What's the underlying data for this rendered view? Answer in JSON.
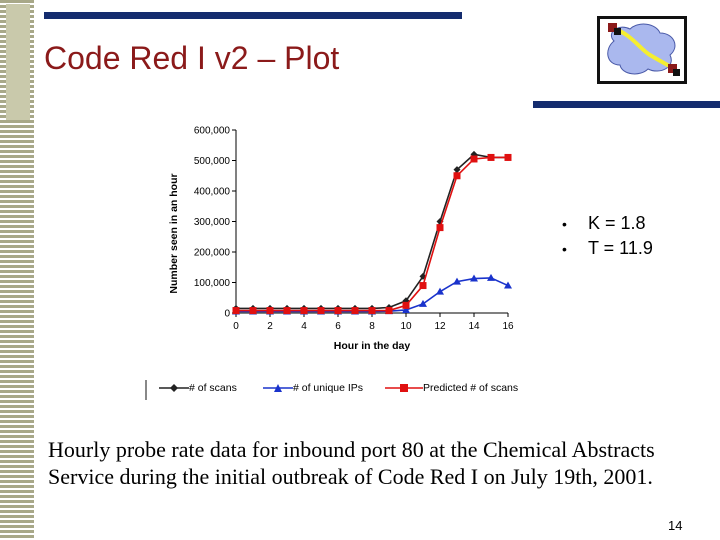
{
  "slide": {
    "title": "Code Red I v2 – Plot",
    "bullets": [
      "K = 1.8",
      "T = 11.9"
    ],
    "caption": "Hourly probe rate data for inbound port 80 at the Chemical Abstracts Service during the initial outbreak of Code Red I on July 19th, 2001.",
    "page_number": "14",
    "logo_icon": "network-cloud-logo-icon",
    "colors": {
      "title": "#8b1a1a",
      "accent_bar": "#142c6e",
      "stripe": "#a8a888"
    }
  },
  "chart_data": {
    "type": "line",
    "xlabel": "Hour in the day",
    "ylabel": "Number seen in an hour",
    "xlim": [
      0,
      16
    ],
    "ylim": [
      0,
      600000
    ],
    "x_ticks": [
      0,
      2,
      4,
      6,
      8,
      10,
      12,
      14,
      16
    ],
    "x_tick_labels": [
      "0",
      "2",
      "4",
      "6",
      "8",
      "10",
      "12",
      "14",
      "16"
    ],
    "y_ticks": [
      0,
      100000,
      200000,
      300000,
      400000,
      500000,
      600000
    ],
    "y_tick_labels": [
      "0",
      "100,000",
      "200,000",
      "300,000",
      "400,000",
      "500,000",
      "600,000"
    ],
    "grid": false,
    "legend_position": "bottom",
    "x": [
      0,
      1,
      2,
      3,
      4,
      5,
      6,
      7,
      8,
      9,
      10,
      11,
      12,
      13,
      14,
      15,
      16
    ],
    "series": [
      {
        "name": "# of scans",
        "color": "#222222",
        "marker": "diamond",
        "values": [
          15000,
          15000,
          15000,
          15000,
          15000,
          15000,
          15000,
          15000,
          15000,
          18000,
          40000,
          120000,
          300000,
          470000,
          520000,
          510000,
          510000
        ]
      },
      {
        "name": "# of unique IPs",
        "color": "#1a33cc",
        "marker": "triangle",
        "values": [
          5000,
          5000,
          5000,
          5000,
          5000,
          5000,
          5000,
          5000,
          5000,
          6000,
          10000,
          30000,
          70000,
          103000,
          113000,
          115000,
          90000
        ]
      },
      {
        "name": "Predicted # of scans",
        "color": "#e01010",
        "marker": "square",
        "values": [
          8000,
          8000,
          8000,
          8000,
          8000,
          8000,
          8000,
          8000,
          8000,
          8000,
          25000,
          90000,
          280000,
          450000,
          505000,
          510000,
          510000
        ]
      }
    ]
  }
}
